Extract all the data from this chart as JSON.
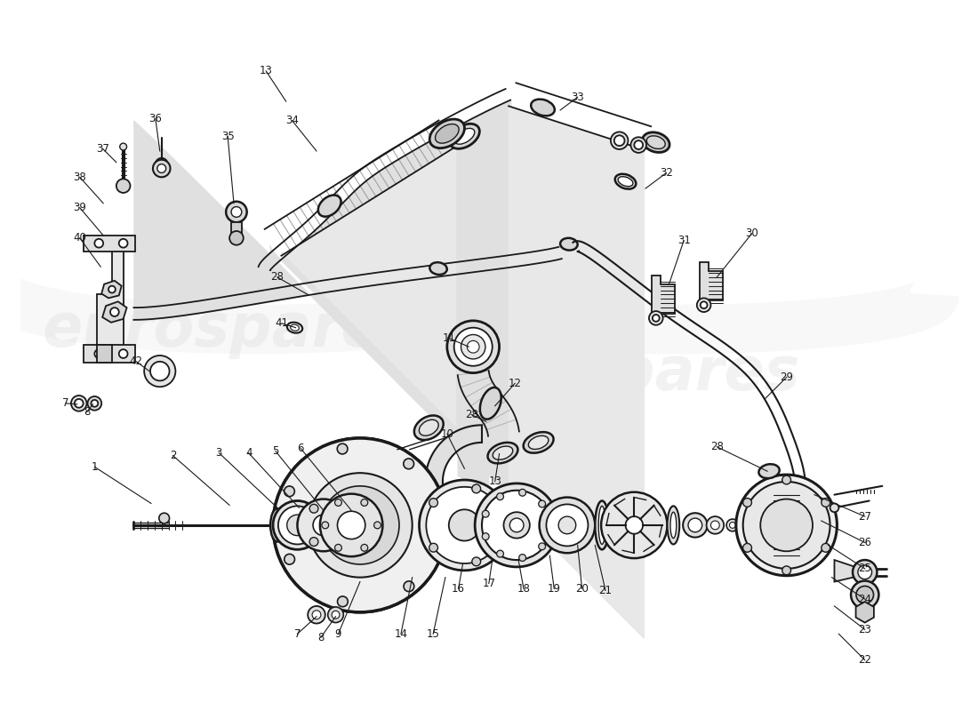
{
  "bg": "#ffffff",
  "lc": "#1a1a1a",
  "wm_color": "#cccccc",
  "wm_alpha": 0.25,
  "wm_text": "eurospares"
}
